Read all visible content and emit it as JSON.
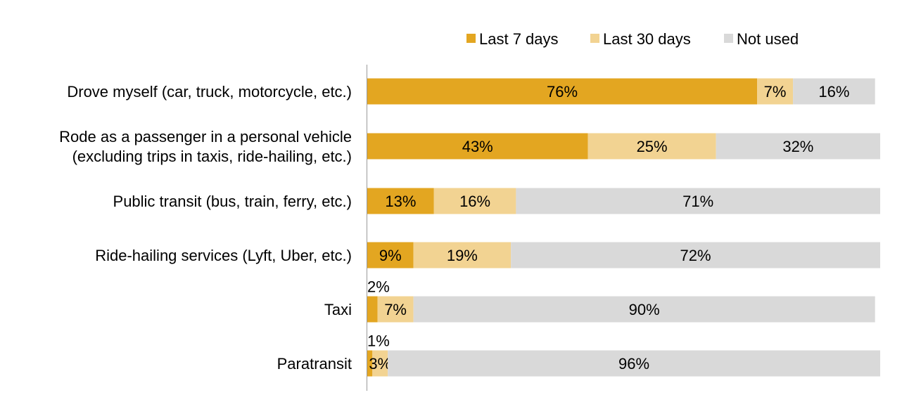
{
  "chart_data": {
    "type": "bar",
    "orientation": "horizontal",
    "stacked": true,
    "value_unit": "%",
    "legend_position": "top-right",
    "grid": false,
    "xlim": [
      0,
      100
    ],
    "categories": [
      [
        "Drove myself (car, truck, motorcycle, etc.)"
      ],
      [
        "Rode as a passenger in a personal vehicle",
        "(excluding trips in taxis, ride-hailing, etc.)"
      ],
      [
        "Public transit (bus, train, ferry, etc.)"
      ],
      [
        "Ride-hailing services (Lyft, Uber, etc.)"
      ],
      [
        "Taxi"
      ],
      [
        "Paratransit"
      ]
    ],
    "series": [
      {
        "name": "Last 7 days",
        "color": "#E3A621",
        "values": [
          76,
          43,
          13,
          9,
          2,
          1
        ]
      },
      {
        "name": "Last 30 days",
        "color": "#F2D392",
        "values": [
          7,
          25,
          16,
          19,
          7,
          3
        ]
      },
      {
        "name": "Not used",
        "color": "#D9D9D9",
        "values": [
          16,
          32,
          71,
          72,
          90,
          96
        ]
      }
    ],
    "data_labels": [
      [
        "76%",
        "7%",
        "16%"
      ],
      [
        "43%",
        "25%",
        "32%"
      ],
      [
        "13%",
        "16%",
        "71%"
      ],
      [
        "9%",
        "19%",
        "72%"
      ],
      [
        "2%",
        "7%",
        "90%"
      ],
      [
        "1%",
        "3%",
        "96%"
      ]
    ]
  }
}
